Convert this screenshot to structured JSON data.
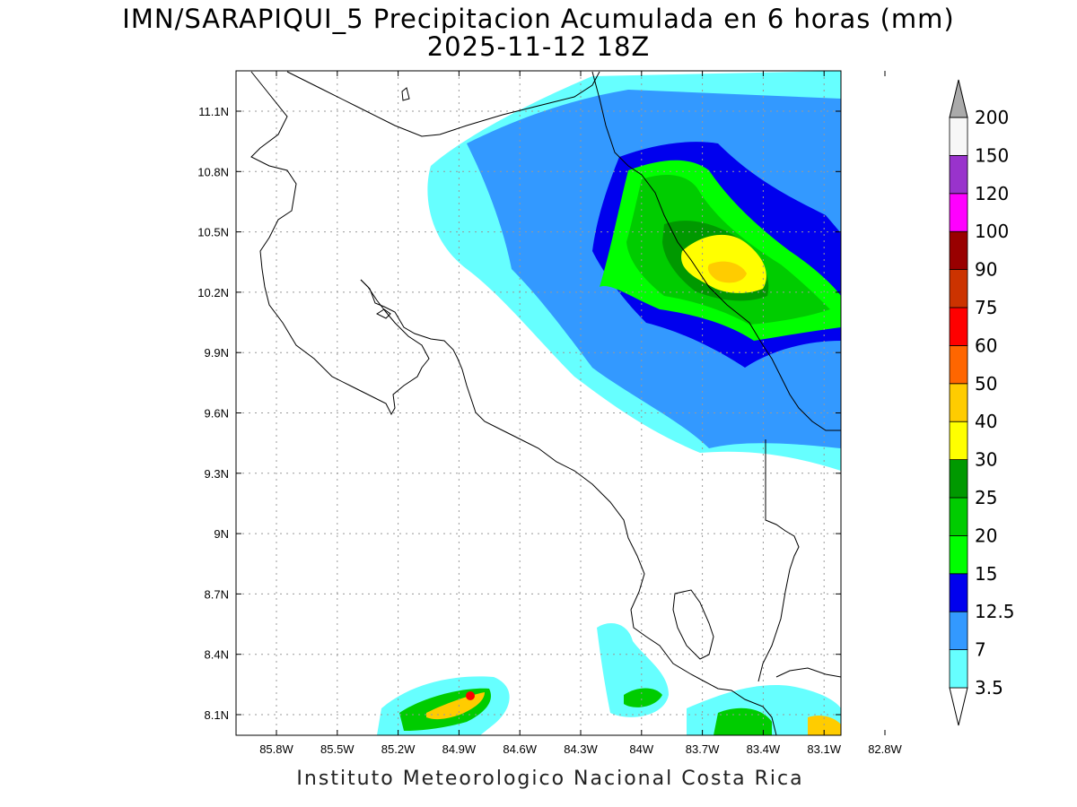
{
  "title": {
    "line1": "IMN/SARAPIQUI_5 Precipitacion Acumulada en 6 horas (mm)",
    "line2": "2025-11-12 18Z"
  },
  "footer": "Instituto Meteorologico Nacional Costa Rica",
  "map": {
    "lon_range": [
      -86.15,
      -82.6
    ],
    "lat_range": [
      8.0,
      11.3
    ],
    "lat_ticks": [
      "8.1N",
      "8.4N",
      "8.7N",
      "9N",
      "9.3N",
      "9.6N",
      "9.9N",
      "10.2N",
      "10.5N",
      "10.8N",
      "11.1N"
    ],
    "lon_ticks": [
      "85.8W",
      "85.5W",
      "85.2W",
      "84.9W",
      "84.6W",
      "84.3W",
      "84W",
      "83.7W",
      "83.4W",
      "83.1W",
      "82.8W"
    ],
    "grid": "dotted"
  },
  "colorbar": {
    "labels": [
      "3.5",
      "7",
      "12.5",
      "15",
      "20",
      "25",
      "30",
      "40",
      "50",
      "60",
      "75",
      "90",
      "100",
      "120",
      "150",
      "200"
    ],
    "colors": [
      "#66ffff",
      "#3399ff",
      "#0000ee",
      "#00ff00",
      "#00cc00",
      "#009900",
      "#ffff00",
      "#ffcc00",
      "#ff6600",
      "#ff0000",
      "#cc3300",
      "#990000",
      "#ff00ff",
      "#9933cc",
      "#f7f7f7",
      "#aaaaaa"
    ]
  }
}
